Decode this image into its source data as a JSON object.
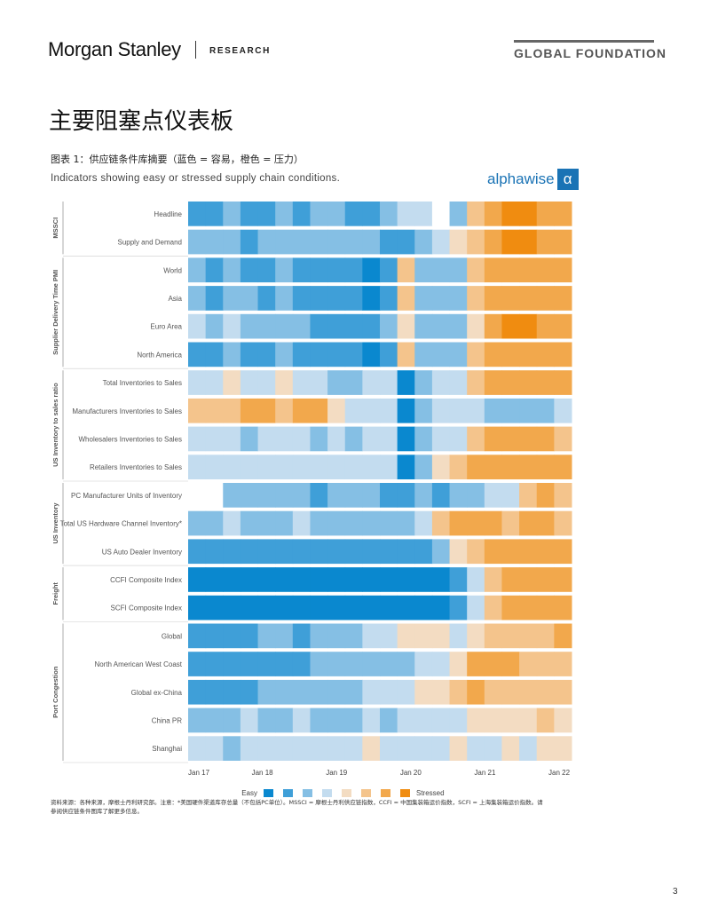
{
  "header": {
    "brand": "Morgan Stanley",
    "research": "RESEARCH",
    "series": "GLOBAL FOUNDATION"
  },
  "page": {
    "title": "主要阻塞点仪表板",
    "caption": "图表 1：供应链条件库摘要（蓝色 = 容易，橙色 = 压力）",
    "footnote": "资料来源：各种来源，摩根士丹利研究部。注意：*美国硬件渠道库存总量（不包括PC单位）。MSSCI = 摩根士丹利供应链指数，CCFI = 中国集装箱运价指数，SCFI = 上海集装箱运价指数。请参阅供应链条件图库了解更多信息。",
    "page_number": "3"
  },
  "colors": {
    "easy": [
      "#0a88cf",
      "#3f9fd8",
      "#85bfe4",
      "#c3dcef"
    ],
    "stressed": [
      "#f3dcc2",
      "#f4c48c",
      "#f2a84c",
      "#f08c10"
    ]
  },
  "chart_data": {
    "type": "heatmap",
    "subtitle": "Indicators showing easy or stressed supply chain conditions.",
    "brand": "alphawise",
    "brand_symbol": "α",
    "x_ticks": [
      "Jan 17",
      "Jan 18",
      "Jan 19",
      "Jan 20",
      "Jan 21",
      "Jan 22"
    ],
    "x_range": [
      "Jan 17",
      "Mar 22"
    ],
    "legend": {
      "easy_label": "Easy",
      "stressed_label": "Stressed",
      "levels": 8,
      "position": "bottom"
    },
    "scale": "-4 (most easy) to 4 (most stressed)",
    "groups": [
      {
        "name": "MSSCI",
        "rows": [
          {
            "label": "Headline",
            "values": [
              -3,
              -3,
              -2,
              -3,
              -3,
              -2,
              -3,
              -2,
              -2,
              -3,
              -3,
              -2,
              -1,
              -1,
              0,
              -2,
              2,
              3,
              4,
              4,
              3,
              3
            ]
          },
          {
            "label": "Supply and Demand",
            "values": [
              -2,
              -2,
              -2,
              -3,
              -2,
              -2,
              -2,
              -2,
              -2,
              -2,
              -2,
              -3,
              -3,
              -2,
              -1,
              1,
              2,
              3,
              4,
              4,
              3,
              3
            ]
          }
        ]
      },
      {
        "name": "Supplier Delivery Time PMI",
        "rows": [
          {
            "label": "World",
            "values": [
              -2,
              -3,
              -2,
              -3,
              -3,
              -2,
              -3,
              -3,
              -3,
              -3,
              -4,
              -3,
              2,
              -2,
              -2,
              -2,
              2,
              3,
              3,
              3,
              3,
              3
            ]
          },
          {
            "label": "Asia",
            "values": [
              -2,
              -3,
              -2,
              -2,
              -3,
              -2,
              -3,
              -3,
              -3,
              -3,
              -4,
              -3,
              2,
              -2,
              -2,
              -2,
              2,
              3,
              3,
              3,
              3,
              3
            ]
          },
          {
            "label": "Euro Area",
            "values": [
              -1,
              -2,
              -1,
              -2,
              -2,
              -2,
              -2,
              -3,
              -3,
              -3,
              -3,
              -2,
              1,
              -2,
              -2,
              -2,
              1,
              3,
              4,
              4,
              3,
              3
            ]
          },
          {
            "label": "North America",
            "values": [
              -3,
              -3,
              -2,
              -3,
              -3,
              -2,
              -3,
              -3,
              -3,
              -3,
              -4,
              -3,
              2,
              -2,
              -2,
              -2,
              2,
              3,
              3,
              3,
              3,
              3
            ]
          }
        ]
      },
      {
        "name": "US Inventory to sales ratio",
        "rows": [
          {
            "label": "Total Inventories to Sales",
            "values": [
              -1,
              -1,
              1,
              -1,
              -1,
              1,
              -1,
              -1,
              -2,
              -2,
              -1,
              -1,
              -4,
              -2,
              -1,
              -1,
              2,
              3,
              3,
              3,
              3,
              3
            ]
          },
          {
            "label": "Manufacturers Inventories to Sales",
            "values": [
              2,
              2,
              2,
              3,
              3,
              2,
              3,
              3,
              1,
              -1,
              -1,
              -1,
              -4,
              -2,
              -1,
              -1,
              -1,
              -2,
              -2,
              -2,
              -2,
              -1
            ]
          },
          {
            "label": "Wholesalers Inventories to Sales",
            "values": [
              -1,
              -1,
              -1,
              -2,
              -1,
              -1,
              -1,
              -2,
              -1,
              -2,
              -1,
              -1,
              -4,
              -2,
              -1,
              -1,
              2,
              3,
              3,
              3,
              3,
              2
            ]
          },
          {
            "label": "Retailers Inventories to Sales",
            "values": [
              -1,
              -1,
              -1,
              -1,
              -1,
              -1,
              -1,
              -1,
              -1,
              -1,
              -1,
              -1,
              -4,
              -2,
              1,
              2,
              3,
              3,
              3,
              3,
              3,
              3
            ]
          }
        ]
      },
      {
        "name": "US Inventory",
        "rows": [
          {
            "label": "PC Manufacturer Units of Inventory",
            "values": [
              0,
              0,
              -2,
              -2,
              -2,
              -2,
              -2,
              -3,
              -2,
              -2,
              -2,
              -3,
              -3,
              -2,
              -3,
              -2,
              -2,
              -1,
              -1,
              2,
              3,
              2
            ]
          },
          {
            "label": "Total US Hardware Channel Inventory*",
            "values": [
              -2,
              -2,
              -1,
              -2,
              -2,
              -2,
              -1,
              -2,
              -2,
              -2,
              -2,
              -2,
              -2,
              -1,
              2,
              3,
              3,
              3,
              2,
              3,
              3,
              2
            ]
          },
          {
            "label": "US Auto Dealer Inventory",
            "values": [
              -3,
              -3,
              -3,
              -3,
              -3,
              -3,
              -3,
              -3,
              -3,
              -3,
              -3,
              -3,
              -3,
              -3,
              -2,
              1,
              2,
              3,
              3,
              3,
              3,
              3
            ]
          }
        ]
      },
      {
        "name": "Freight",
        "rows": [
          {
            "label": "CCFI Composite Index",
            "values": [
              -4,
              -4,
              -4,
              -4,
              -4,
              -4,
              -4,
              -4,
              -4,
              -4,
              -4,
              -4,
              -4,
              -4,
              -4,
              -3,
              -1,
              2,
              3,
              3,
              3,
              3
            ]
          },
          {
            "label": "SCFI Composite Index",
            "values": [
              -4,
              -4,
              -4,
              -4,
              -4,
              -4,
              -4,
              -4,
              -4,
              -4,
              -4,
              -4,
              -4,
              -4,
              -4,
              -3,
              -1,
              2,
              3,
              3,
              3,
              3
            ]
          }
        ]
      },
      {
        "name": "Port Congestion",
        "rows": [
          {
            "label": "Global",
            "values": [
              -3,
              -3,
              -3,
              -3,
              -2,
              -2,
              -3,
              -2,
              -2,
              -2,
              -1,
              -1,
              1,
              1,
              1,
              -1,
              1,
              2,
              2,
              2,
              2,
              3
            ]
          },
          {
            "label": "North American West Coast",
            "values": [
              -3,
              -3,
              -3,
              -3,
              -3,
              -3,
              -3,
              -2,
              -2,
              -2,
              -2,
              -2,
              -2,
              -1,
              -1,
              1,
              3,
              3,
              3,
              2,
              2,
              2
            ]
          },
          {
            "label": "Global ex-China",
            "values": [
              -3,
              -3,
              -3,
              -3,
              -2,
              -2,
              -2,
              -2,
              -2,
              -2,
              -1,
              -1,
              -1,
              1,
              1,
              2,
              3,
              2,
              2,
              2,
              2,
              2
            ]
          },
          {
            "label": "China PR",
            "values": [
              -2,
              -2,
              -2,
              -1,
              -2,
              -2,
              -1,
              -2,
              -2,
              -2,
              -1,
              -2,
              -1,
              -1,
              -1,
              -1,
              1,
              1,
              1,
              1,
              2,
              1
            ]
          },
          {
            "label": "Shanghai",
            "values": [
              -1,
              -1,
              -2,
              -1,
              -1,
              -1,
              -1,
              -1,
              -1,
              -1,
              1,
              -1,
              -1,
              -1,
              -1,
              1,
              -1,
              -1,
              1,
              -1,
              1,
              1
            ]
          }
        ]
      }
    ]
  }
}
